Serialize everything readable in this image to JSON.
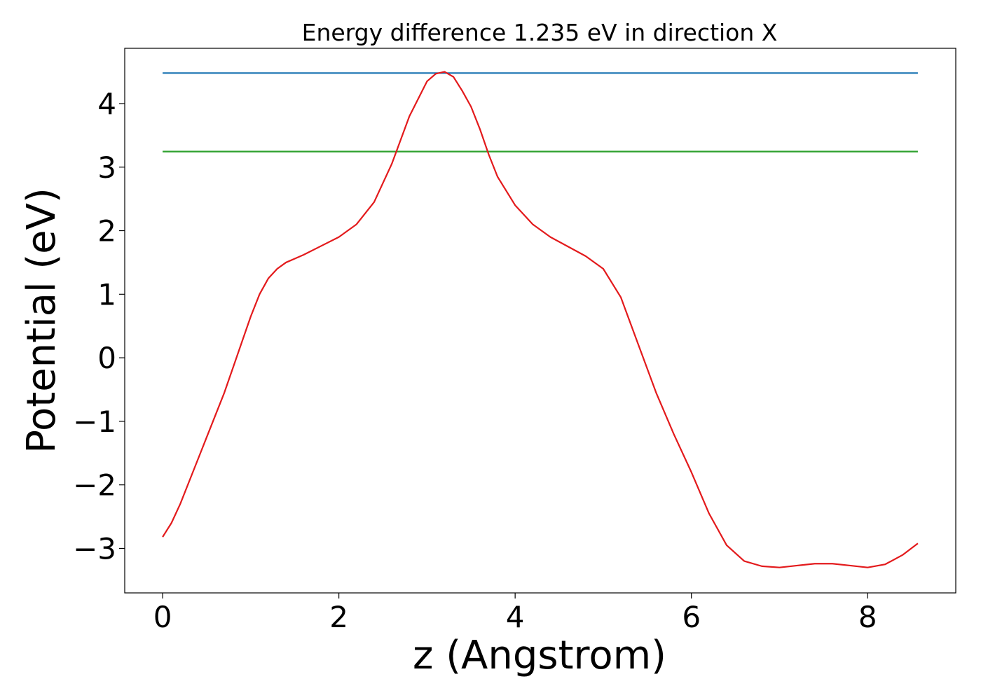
{
  "chart_data": {
    "type": "line",
    "title": "Energy difference 1.235 eV in direction X",
    "xlabel": "z (Angstrom)",
    "ylabel": "Potential (eV)",
    "xlim": [
      -0.43,
      9.0
    ],
    "ylim": [
      -3.7,
      4.87
    ],
    "xticks": [
      0,
      2,
      4,
      6,
      8
    ],
    "xtick_labels": [
      "0",
      "2",
      "4",
      "6",
      "8"
    ],
    "yticks": [
      -3,
      -2,
      -1,
      0,
      1,
      2,
      3,
      4
    ],
    "ytick_labels": [
      "−3",
      "−2",
      "−1",
      "0",
      "1",
      "2",
      "3",
      "4"
    ],
    "grid": false,
    "series": [
      {
        "color": "#1f77b4",
        "x": [
          0,
          8.57
        ],
        "y": [
          4.48,
          4.48
        ]
      },
      {
        "color": "#2ca02c",
        "x": [
          0,
          8.57
        ],
        "y": [
          3.245,
          3.245
        ]
      },
      {
        "color": "#e31a1c",
        "x": [
          0.0,
          0.1,
          0.2,
          0.3,
          0.4,
          0.5,
          0.6,
          0.7,
          0.8,
          0.9,
          1.0,
          1.1,
          1.2,
          1.3,
          1.4,
          1.5,
          1.6,
          1.8,
          2.0,
          2.2,
          2.4,
          2.6,
          2.8,
          3.0,
          3.1,
          3.2,
          3.3,
          3.4,
          3.5,
          3.6,
          3.7,
          3.8,
          4.0,
          4.2,
          4.4,
          4.6,
          4.8,
          5.0,
          5.2,
          5.4,
          5.6,
          5.8,
          6.0,
          6.2,
          6.4,
          6.6,
          6.8,
          7.0,
          7.2,
          7.4,
          7.6,
          7.8,
          8.0,
          8.2,
          8.4,
          8.57
        ],
        "y": [
          -2.82,
          -2.6,
          -2.3,
          -1.95,
          -1.6,
          -1.25,
          -0.9,
          -0.55,
          -0.15,
          0.25,
          0.65,
          1.0,
          1.25,
          1.4,
          1.5,
          1.56,
          1.62,
          1.76,
          1.9,
          2.1,
          2.45,
          3.05,
          3.8,
          4.35,
          4.47,
          4.5,
          4.42,
          4.2,
          3.95,
          3.6,
          3.2,
          2.85,
          2.4,
          2.1,
          1.9,
          1.75,
          1.6,
          1.4,
          0.95,
          0.2,
          -0.55,
          -1.2,
          -1.8,
          -2.45,
          -2.95,
          -3.2,
          -3.28,
          -3.3,
          -3.27,
          -3.24,
          -3.24,
          -3.27,
          -3.3,
          -3.25,
          -3.1,
          -2.92
        ]
      }
    ]
  }
}
